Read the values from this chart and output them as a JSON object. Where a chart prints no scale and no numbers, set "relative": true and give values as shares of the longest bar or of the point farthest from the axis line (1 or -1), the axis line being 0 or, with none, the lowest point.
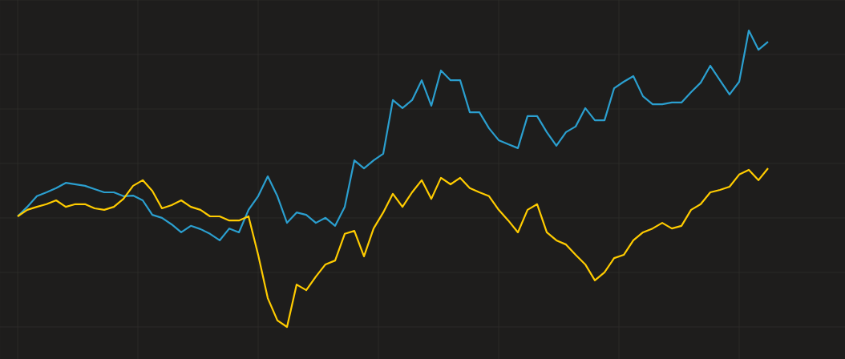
{
  "chart_data": {
    "type": "line",
    "relative": true,
    "grid": true,
    "marker": "none",
    "line_style": "solid",
    "categories": [
      null,
      null,
      null,
      null,
      null,
      null,
      null,
      null,
      null,
      null,
      null,
      null,
      null,
      null,
      null,
      null,
      null,
      null,
      null,
      null,
      null,
      null,
      null,
      null,
      null,
      null,
      null,
      null,
      null,
      null,
      null,
      null,
      null,
      null,
      null,
      null,
      null,
      null,
      null,
      null,
      null,
      null,
      null,
      null,
      null,
      null,
      null,
      null,
      null,
      null,
      null,
      null,
      null,
      null,
      null,
      null,
      null,
      null,
      null,
      null,
      null,
      null,
      null,
      null,
      null,
      null,
      null,
      null,
      null,
      null,
      null,
      null,
      null,
      null,
      null,
      null,
      null,
      null,
      null
    ],
    "series": [
      {
        "color": "#2b9fcf",
        "values": [
          0.373,
          0.405,
          0.441,
          0.454,
          0.468,
          0.486,
          0.481,
          0.476,
          0.465,
          0.454,
          0.454,
          0.441,
          0.443,
          0.427,
          0.378,
          0.368,
          0.346,
          0.319,
          0.341,
          0.33,
          0.314,
          0.292,
          0.332,
          0.319,
          0.395,
          0.441,
          0.508,
          0.441,
          0.351,
          0.386,
          0.378,
          0.351,
          0.368,
          0.341,
          0.405,
          0.562,
          0.535,
          0.562,
          0.584,
          0.765,
          0.738,
          0.765,
          0.832,
          0.746,
          0.865,
          0.832,
          0.832,
          0.724,
          0.724,
          0.67,
          0.63,
          0.616,
          0.603,
          0.711,
          0.711,
          0.657,
          0.611,
          0.657,
          0.676,
          0.738,
          0.697,
          0.697,
          0.805,
          0.827,
          0.846,
          0.778,
          0.751,
          0.751,
          0.757,
          0.757,
          0.792,
          0.824,
          0.881,
          0.832,
          0.784,
          0.827,
          1.0,
          0.935,
          0.962
        ]
      },
      {
        "color": "#ffcc00",
        "values": [
          0.373,
          0.395,
          0.405,
          0.414,
          0.427,
          0.405,
          0.414,
          0.414,
          0.4,
          0.395,
          0.405,
          0.432,
          0.476,
          0.495,
          0.459,
          0.4,
          0.411,
          0.427,
          0.405,
          0.395,
          0.373,
          0.373,
          0.359,
          0.359,
          0.373,
          0.243,
          0.097,
          0.022,
          0.0,
          0.143,
          0.124,
          0.17,
          0.211,
          0.224,
          0.314,
          0.324,
          0.238,
          0.332,
          0.386,
          0.449,
          0.405,
          0.454,
          0.495,
          0.432,
          0.503,
          0.481,
          0.503,
          0.468,
          0.454,
          0.441,
          0.395,
          0.359,
          0.319,
          0.395,
          0.414,
          0.319,
          0.292,
          0.278,
          0.243,
          0.211,
          0.157,
          0.184,
          0.232,
          0.243,
          0.292,
          0.319,
          0.332,
          0.351,
          0.332,
          0.341,
          0.395,
          0.414,
          0.454,
          0.462,
          0.473,
          0.514,
          0.53,
          0.495,
          0.535
        ]
      }
    ]
  }
}
